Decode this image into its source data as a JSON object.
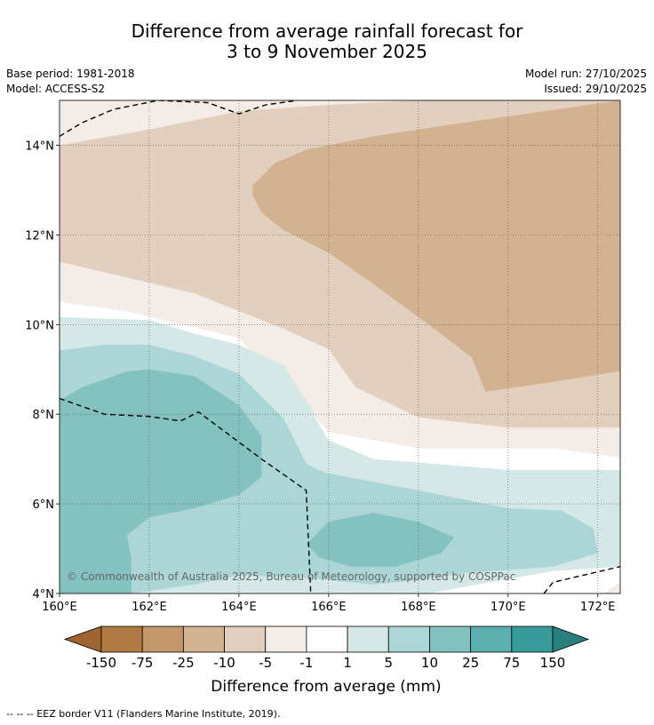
{
  "header": {
    "title_line1": "Difference from average rainfall forecast for",
    "title_line2": "3 to 9 November 2025",
    "base_period": "Base period: 1981-2018",
    "model": "Model: ACCESS-S2",
    "model_run": "Model run: 27/10/2025",
    "issued": "Issued: 29/10/2025"
  },
  "map": {
    "copyright": "© Commonwealth of Australia 2025, Bureau of Meteorology, supported by COSPPac"
  },
  "chart_data": {
    "type": "heatmap",
    "lon_range": [
      160,
      172.5
    ],
    "lat_range": [
      4,
      15
    ],
    "x_ticks": [
      160,
      162,
      164,
      166,
      168,
      170,
      172
    ],
    "y_ticks": [
      4,
      6,
      8,
      10,
      12,
      14
    ],
    "x_tick_labels": [
      "160°E",
      "162°E",
      "164°E",
      "166°E",
      "168°E",
      "170°E",
      "172°E"
    ],
    "y_tick_labels": [
      "4°N",
      "6°N",
      "8°N",
      "10°N",
      "12°N",
      "14°N"
    ],
    "colorbar": {
      "label": "Difference from average (mm)",
      "tick_labels": [
        "-150",
        "-75",
        "-25",
        "-10",
        "-5",
        "-1",
        "1",
        "5",
        "10",
        "25",
        "75",
        "150"
      ],
      "colors": [
        "#9e6530",
        "#b27a43",
        "#c3976a",
        "#d3b292",
        "#e3cfbd",
        "#f4ece7",
        "#ffffff",
        "#d4e8e8",
        "#acd5d5",
        "#84c2c2",
        "#5cafaf",
        "#359b9b",
        "#2a7f7f"
      ]
    },
    "regions": [
      {
        "level": "-1 to -5",
        "color": "#f4ece7",
        "points": [
          [
            160,
            15
          ],
          [
            172.5,
            15
          ],
          [
            172.5,
            7.03
          ],
          [
            171,
            7.24
          ],
          [
            168,
            7.24
          ],
          [
            166,
            7.6
          ],
          [
            165,
            8.6
          ],
          [
            164,
            9.7
          ],
          [
            161.5,
            10.3
          ],
          [
            160,
            10.5
          ]
        ]
      },
      {
        "level": "-5 to -10",
        "color": "#e3cfbd",
        "points": [
          [
            160,
            14
          ],
          [
            162,
            14.35
          ],
          [
            164,
            14.76
          ],
          [
            166,
            14.9
          ],
          [
            168,
            15
          ],
          [
            172.5,
            15
          ],
          [
            172.5,
            7.7
          ],
          [
            170,
            7.7
          ],
          [
            168,
            7.93
          ],
          [
            166.6,
            8.6
          ],
          [
            166,
            9.45
          ],
          [
            165,
            9.9
          ],
          [
            163,
            10.7
          ],
          [
            160,
            11.4
          ]
        ]
      },
      {
        "level": "-10 to -25",
        "color": "#d3b292",
        "points": [
          [
            164.3,
            13.1
          ],
          [
            164.8,
            13.6
          ],
          [
            165.5,
            13.9
          ],
          [
            167,
            14.2
          ],
          [
            169,
            14.5
          ],
          [
            172.5,
            15
          ],
          [
            172.5,
            8.96
          ],
          [
            171,
            8.72
          ],
          [
            169.5,
            8.5
          ],
          [
            169.2,
            9.25
          ],
          [
            168.5,
            9.8
          ],
          [
            167,
            10.9
          ],
          [
            166,
            11.6
          ],
          [
            165,
            12.1
          ],
          [
            164.5,
            12.5
          ],
          [
            164.3,
            12.9
          ]
        ]
      },
      {
        "level": "1 to 5",
        "color": "#d4e8e8",
        "points": [
          [
            160,
            10.17
          ],
          [
            161,
            10.13
          ],
          [
            162,
            10.1
          ],
          [
            163,
            9.8
          ],
          [
            164,
            9.55
          ],
          [
            165,
            9.1
          ],
          [
            165.3,
            8.6
          ],
          [
            165.7,
            8
          ],
          [
            166,
            7.42
          ],
          [
            167,
            7
          ],
          [
            170,
            6.76
          ],
          [
            172.5,
            6.76
          ],
          [
            172.5,
            4.6
          ],
          [
            171,
            4.5
          ],
          [
            169,
            4
          ],
          [
            160,
            4
          ]
        ]
      },
      {
        "level": "5 to 10",
        "color": "#acd5d5",
        "points": [
          [
            160,
            9.42
          ],
          [
            161,
            9.55
          ],
          [
            162,
            9.55
          ],
          [
            163,
            9.3
          ],
          [
            164,
            8.9
          ],
          [
            165,
            7.9
          ],
          [
            165.5,
            6.9
          ],
          [
            165.9,
            6.7
          ],
          [
            168,
            6.3
          ],
          [
            170,
            5.9
          ],
          [
            171.2,
            5.85
          ],
          [
            171.9,
            5.45
          ],
          [
            172,
            4.9
          ],
          [
            171,
            4.6
          ],
          [
            169,
            4.45
          ],
          [
            168,
            4.3
          ],
          [
            167,
            4.2
          ],
          [
            165.5,
            4.35
          ],
          [
            164,
            4.4
          ],
          [
            163,
            4.2
          ],
          [
            161.6,
            4
          ],
          [
            160,
            4
          ]
        ]
      },
      {
        "level": "10 to 25",
        "color": "#84c2c2",
        "points": [
          [
            160,
            8.3
          ],
          [
            160.5,
            8.6
          ],
          [
            161.5,
            8.95
          ],
          [
            162,
            9
          ],
          [
            163,
            8.85
          ],
          [
            164,
            8.2
          ],
          [
            164.5,
            7.5
          ],
          [
            164.5,
            6.6
          ],
          [
            164,
            6.2
          ],
          [
            163,
            5.9
          ],
          [
            162,
            5.7
          ],
          [
            161.5,
            5.3
          ],
          [
            161.6,
            4.8
          ],
          [
            161.6,
            4
          ],
          [
            160,
            4
          ]
        ]
      },
      {
        "level": "10 to 25",
        "color": "#84c2c2",
        "points": [
          [
            165.5,
            5.1
          ],
          [
            166,
            5.6
          ],
          [
            167,
            5.8
          ],
          [
            168,
            5.6
          ],
          [
            168.8,
            5.25
          ],
          [
            168.5,
            4.9
          ],
          [
            167.5,
            4.6
          ],
          [
            166.5,
            4.6
          ],
          [
            165.8,
            4.8
          ]
        ]
      }
    ],
    "white_wedges": [
      {
        "level": "-1 to 1",
        "points": [
          [
            165.65,
            8
          ],
          [
            166,
            7.42
          ],
          [
            167,
            7
          ],
          [
            170,
            6.76
          ],
          [
            172.5,
            6.76
          ],
          [
            172.5,
            7.03
          ],
          [
            171,
            7.24
          ],
          [
            168,
            7.24
          ],
          [
            166,
            7.6
          ]
        ]
      },
      {
        "level": "-1 to 1",
        "points": [
          [
            168.2,
            4
          ],
          [
            171,
            4.5
          ],
          [
            172.5,
            4.6
          ],
          [
            172.5,
            4
          ],
          [
            168.2,
            4
          ]
        ]
      }
    ],
    "corner_patches": [
      {
        "level": "-1 to -5",
        "color": "#f4ece7",
        "points": [
          [
            172.1,
            4
          ],
          [
            172.5,
            4
          ],
          [
            172.5,
            4.25
          ],
          [
            172.2,
            4.05
          ]
        ]
      }
    ],
    "eez_border": [
      [
        [
          160,
          14.2
        ],
        [
          160.5,
          14.5
        ],
        [
          161.2,
          14.8
        ],
        [
          162.2,
          15
        ],
        [
          163.3,
          14.95
        ],
        [
          164,
          14.7
        ],
        [
          164.6,
          14.9
        ],
        [
          165.3,
          15
        ]
      ],
      [
        [
          160,
          8.35
        ],
        [
          161,
          8
        ],
        [
          162,
          7.95
        ],
        [
          162.7,
          7.85
        ],
        [
          163.1,
          8.05
        ],
        [
          164.5,
          7
        ],
        [
          165.5,
          6.3
        ],
        [
          165.6,
          4
        ]
      ],
      [
        [
          170.8,
          4
        ],
        [
          171,
          4.25
        ],
        [
          172.5,
          4.6
        ]
      ]
    ]
  },
  "footer": {
    "text": "--  --  -- EEZ border V11 (Flanders Marine Institute, 2019)."
  }
}
